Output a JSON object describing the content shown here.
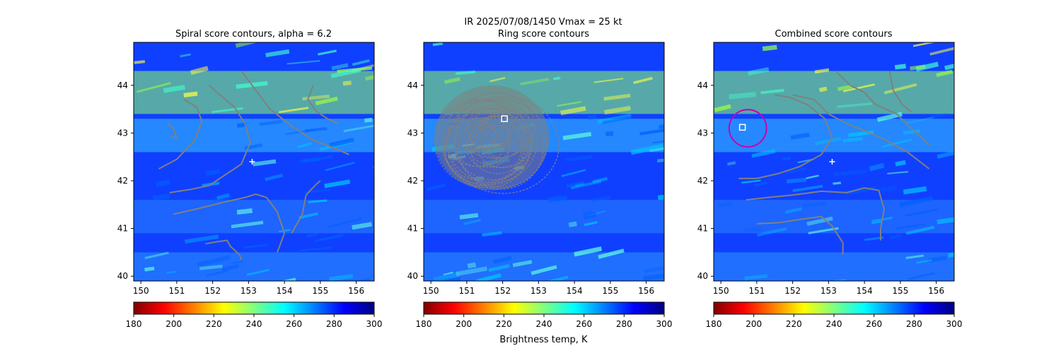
{
  "figure": {
    "suptitle_line1": "IR  2025/07/08/1450    Vmax = 25 kt",
    "colorbar_label": "Brightness temp, K"
  },
  "colors": {
    "contour": "#808080",
    "marker": "#ffffff",
    "ring": "#cc00aa"
  },
  "colormap": {
    "name": "jet_r",
    "range": [
      180,
      300
    ],
    "ticks": [
      "180",
      "200",
      "220",
      "240",
      "260",
      "280",
      "300"
    ],
    "stops": [
      "#800000",
      "#ff0000",
      "#ff8000",
      "#ffff00",
      "#80ff80",
      "#00ffff",
      "#0080ff",
      "#0000ff",
      "#000080"
    ]
  },
  "chart_data": [
    {
      "type": "heatmap",
      "title": "Spiral score contours, alpha =  6.2",
      "xlabel": "",
      "ylabel": "",
      "xlim": [
        149.8,
        156.5
      ],
      "ylim": [
        39.9,
        44.9
      ],
      "xticks": [
        "150",
        "151",
        "152",
        "153",
        "154",
        "155",
        "156"
      ],
      "yticks": [
        "40",
        "41",
        "42",
        "43",
        "44"
      ],
      "colorbar": {
        "range": [
          180,
          300
        ],
        "ticks": [
          "180",
          "200",
          "220",
          "240",
          "260",
          "280",
          "300"
        ],
        "label": ""
      },
      "center_marker": {
        "lon": 153.1,
        "lat": 42.4,
        "symbol": "+"
      },
      "contours": [
        [
          [
            150.5,
            42.25
          ],
          [
            151.0,
            42.45
          ],
          [
            151.5,
            42.85
          ],
          [
            151.7,
            43.25
          ],
          [
            151.55,
            43.55
          ],
          [
            151.2,
            43.7
          ]
        ],
        [
          [
            150.8,
            42.92
          ],
          [
            151.0,
            42.9
          ],
          [
            150.9,
            43.1
          ],
          [
            150.75,
            43.2
          ]
        ],
        [
          [
            150.8,
            41.75
          ],
          [
            151.4,
            41.82
          ],
          [
            151.9,
            41.9
          ],
          [
            152.3,
            42.1
          ],
          [
            152.8,
            42.35
          ],
          [
            153.05,
            42.8
          ],
          [
            152.9,
            43.2
          ],
          [
            152.6,
            43.55
          ],
          [
            152.2,
            43.8
          ],
          [
            151.9,
            44.0
          ]
        ],
        [
          [
            150.9,
            41.3
          ],
          [
            151.5,
            41.4
          ],
          [
            152.3,
            41.55
          ],
          [
            152.9,
            41.65
          ],
          [
            153.2,
            41.72
          ],
          [
            153.5,
            41.65
          ],
          [
            153.8,
            41.35
          ],
          [
            154.0,
            40.9
          ],
          [
            153.8,
            40.5
          ]
        ],
        [
          [
            152.8,
            44.3
          ],
          [
            153.2,
            43.9
          ],
          [
            153.6,
            43.5
          ],
          [
            154.2,
            43.15
          ],
          [
            154.8,
            42.85
          ],
          [
            155.4,
            42.68
          ],
          [
            155.8,
            42.55
          ]
        ],
        [
          [
            154.8,
            44.0
          ],
          [
            154.65,
            43.7
          ],
          [
            154.9,
            43.45
          ],
          [
            155.2,
            43.3
          ],
          [
            155.5,
            43.2
          ]
        ],
        [
          [
            154.2,
            40.9
          ],
          [
            154.5,
            41.3
          ],
          [
            154.6,
            41.7
          ],
          [
            154.85,
            41.9
          ],
          [
            155.0,
            42.0
          ]
        ],
        [
          [
            151.8,
            40.68
          ],
          [
            152.1,
            40.72
          ],
          [
            152.4,
            40.75
          ],
          [
            152.5,
            40.62
          ],
          [
            152.75,
            40.45
          ],
          [
            152.8,
            40.35
          ]
        ]
      ]
    },
    {
      "type": "heatmap",
      "title": "Ring score contours",
      "xlabel": "",
      "ylabel": "",
      "xlim": [
        149.8,
        156.5
      ],
      "ylim": [
        39.9,
        44.9
      ],
      "xticks": [
        "150",
        "151",
        "152",
        "153",
        "154",
        "155",
        "156"
      ],
      "yticks": [
        "40",
        "41",
        "42",
        "43",
        "44"
      ],
      "colorbar": {
        "range": [
          180,
          300
        ],
        "ticks": [
          "180",
          "200",
          "220",
          "240",
          "260",
          "280",
          "300"
        ],
        "label": "Brightness temp, K"
      },
      "center_marker": {
        "lon": 152.05,
        "lat": 43.3,
        "symbol": "square"
      },
      "contour_region": {
        "lon_range": [
          150.1,
          153.3
        ],
        "lat_range": [
          41.8,
          44.0
        ],
        "description": "dense ring score contours"
      }
    },
    {
      "type": "heatmap",
      "title": "Combined score contours",
      "xlabel": "",
      "ylabel": "",
      "xlim": [
        149.8,
        156.5
      ],
      "ylim": [
        39.9,
        44.9
      ],
      "xticks": [
        "150",
        "151",
        "152",
        "153",
        "154",
        "155",
        "156"
      ],
      "yticks": [
        "40",
        "41",
        "42",
        "43",
        "44"
      ],
      "colorbar": {
        "range": [
          180,
          300
        ],
        "ticks": [
          "180",
          "200",
          "220",
          "240",
          "260",
          "280",
          "300"
        ],
        "label": ""
      },
      "center_marker": {
        "lon": 153.1,
        "lat": 42.4,
        "symbol": "+"
      },
      "best_center": {
        "lon": 150.6,
        "lat": 43.12,
        "symbol": "square"
      },
      "ring": {
        "lon": 150.75,
        "lat": 43.1,
        "radius_deg": 0.52
      },
      "contours": [
        [
          [
            150.5,
            42.05
          ],
          [
            151.0,
            42.05
          ],
          [
            151.6,
            42.15
          ],
          [
            152.2,
            42.3
          ],
          [
            152.8,
            42.55
          ],
          [
            153.1,
            42.9
          ],
          [
            152.9,
            43.3
          ],
          [
            152.4,
            43.6
          ],
          [
            151.9,
            43.75
          ],
          [
            151.5,
            43.8
          ]
        ],
        [
          [
            150.7,
            41.6
          ],
          [
            151.3,
            41.65
          ],
          [
            152.0,
            41.7
          ],
          [
            152.8,
            41.78
          ],
          [
            153.5,
            41.75
          ],
          [
            154.0,
            41.85
          ],
          [
            154.4,
            41.8
          ],
          [
            154.55,
            41.4
          ],
          [
            154.45,
            41.0
          ],
          [
            154.45,
            40.75
          ]
        ],
        [
          [
            151.0,
            41.1
          ],
          [
            151.6,
            41.12
          ],
          [
            152.3,
            41.2
          ],
          [
            152.8,
            41.25
          ],
          [
            153.1,
            41.05
          ],
          [
            153.4,
            40.7
          ],
          [
            153.4,
            40.45
          ]
        ],
        [
          [
            152.0,
            43.8
          ],
          [
            152.6,
            43.7
          ],
          [
            153.0,
            43.4
          ],
          [
            153.5,
            43.2
          ],
          [
            154.0,
            43.05
          ],
          [
            154.6,
            42.85
          ],
          [
            155.2,
            42.6
          ],
          [
            155.8,
            42.25
          ]
        ],
        [
          [
            153.2,
            44.3
          ],
          [
            153.6,
            44.0
          ],
          [
            154.0,
            43.85
          ],
          [
            154.3,
            43.6
          ],
          [
            154.9,
            43.4
          ],
          [
            155.3,
            43.1
          ],
          [
            155.6,
            42.9
          ],
          [
            155.8,
            42.75
          ]
        ],
        [
          [
            154.7,
            44.3
          ],
          [
            154.8,
            43.9
          ],
          [
            155.05,
            43.6
          ],
          [
            155.3,
            43.45
          ]
        ]
      ]
    }
  ]
}
